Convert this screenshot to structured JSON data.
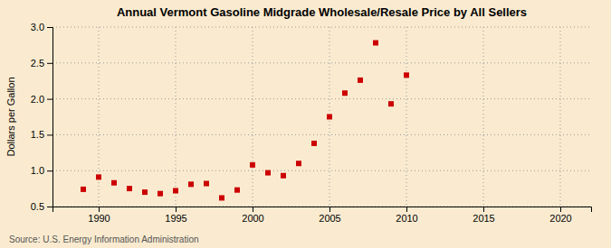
{
  "chart_data": {
    "type": "scatter",
    "title": "Annual Vermont Gasoline Midgrade Wholesale/Resale Price by All Sellers",
    "ylabel": "Dollars per Gallon",
    "annotations": [
      "Source: U.S. Energy Information Administration"
    ],
    "x": [
      1989,
      1990,
      1991,
      1992,
      1993,
      1994,
      1995,
      1996,
      1997,
      1998,
      1999,
      2000,
      2001,
      2002,
      2003,
      2004,
      2005,
      2006,
      2007,
      2008,
      2009,
      2010
    ],
    "values": [
      0.74,
      0.91,
      0.83,
      0.75,
      0.7,
      0.68,
      0.72,
      0.81,
      0.82,
      0.62,
      0.73,
      1.08,
      0.97,
      0.93,
      1.1,
      1.38,
      1.75,
      2.08,
      2.26,
      2.78,
      1.93,
      2.33
    ],
    "xlim": [
      1987,
      2022
    ],
    "ylim": [
      0.5,
      3.0
    ],
    "yticks": [
      0.5,
      {
        "value": 1.0,
        "label": "1.0"
      },
      1.5,
      {
        "value": 2.0,
        "label": "2.0"
      },
      2.5,
      {
        "value": 3.0,
        "label": "3.0"
      }
    ],
    "xticks": [
      1990,
      1995,
      2000,
      2005,
      2010,
      2015,
      2020
    ],
    "color": "#cc0000",
    "marker": "square",
    "grid": true
  }
}
